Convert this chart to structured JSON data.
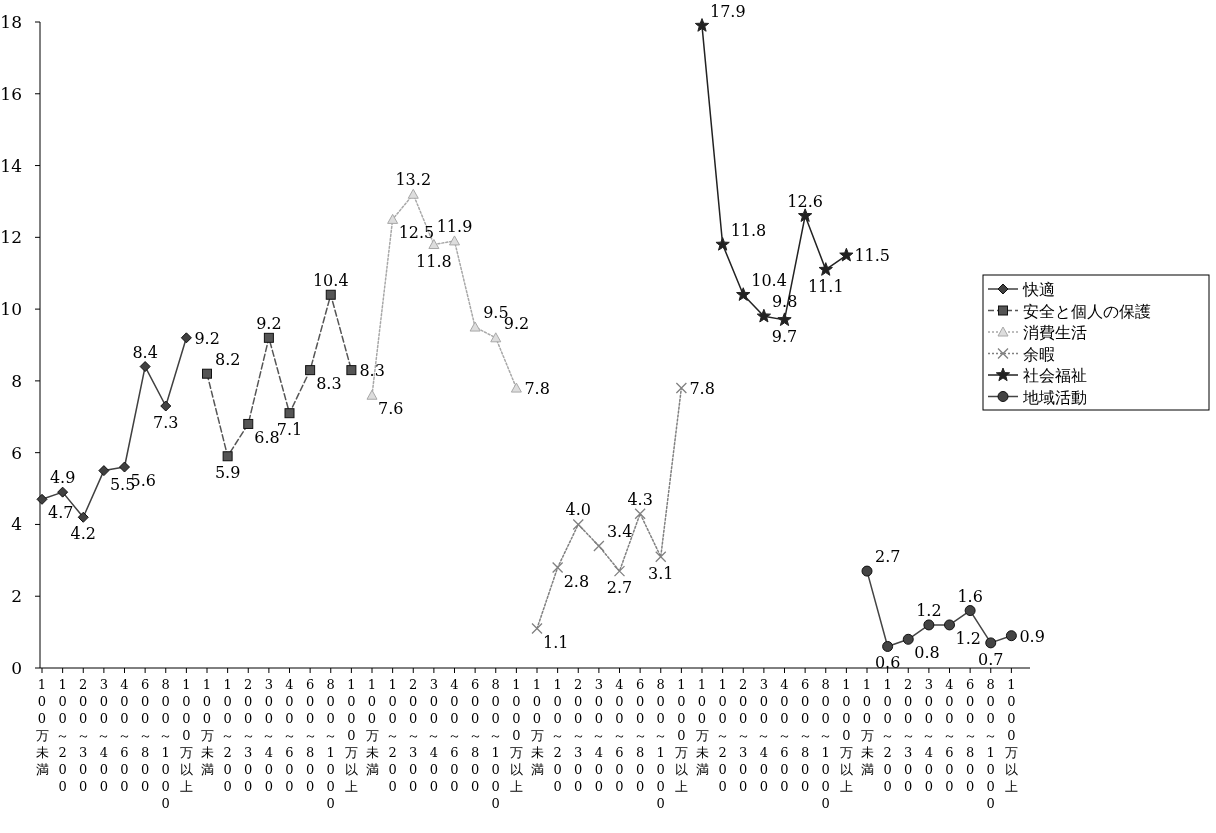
{
  "chart_data": {
    "type": "line",
    "categories": [
      "100万未満",
      "100～200",
      "200～300",
      "300～400",
      "400～600",
      "600～800",
      "800～1000",
      "1000万以上",
      "100万未満",
      "100～200",
      "200～300",
      "300～400",
      "400～600",
      "600～800",
      "800～1000",
      "1000万以上",
      "100万未満",
      "100～200",
      "200～300",
      "300～400",
      "400～600",
      "600～800",
      "800～1000",
      "1000万以上",
      "100万未満",
      "100～200",
      "200～300",
      "300～400",
      "400～600",
      "600～800",
      "800～1000",
      "1000万以上",
      "100万未満",
      "100～200",
      "200～300",
      "300～400",
      "400～600",
      "600～800",
      "800～1000",
      "1000万以上",
      "100万未満",
      "100～200",
      "200～300",
      "300～400",
      "400～600",
      "600～800",
      "800～1000",
      "1000万以上"
    ],
    "series": [
      {
        "name": "快適",
        "color": "#404040",
        "marker": "diamond",
        "line_style": "solid",
        "values": [
          4.7,
          4.9,
          4.2,
          5.5,
          5.6,
          8.4,
          7.3,
          9.2,
          null,
          null,
          null,
          null,
          null,
          null,
          null,
          null,
          null,
          null,
          null,
          null,
          null,
          null,
          null,
          null,
          null,
          null,
          null,
          null,
          null,
          null,
          null,
          null,
          null,
          null,
          null,
          null,
          null,
          null,
          null,
          null,
          null,
          null,
          null,
          null,
          null,
          null,
          null,
          null
        ],
        "value_labels": [
          "4.7",
          "4.9",
          "4.2",
          "5.5",
          "5.6",
          "8.4",
          "7.3",
          "9.2",
          null,
          null,
          null,
          null,
          null,
          null,
          null,
          null,
          null,
          null,
          null,
          null,
          null,
          null,
          null,
          null,
          null,
          null,
          null,
          null,
          null,
          null,
          null,
          null,
          null,
          null,
          null,
          null,
          null,
          null,
          null,
          null,
          null,
          null,
          null,
          null,
          null,
          null,
          null,
          null
        ]
      },
      {
        "name": "安全と個人の保護",
        "color": "#555555",
        "marker": "square",
        "line_style": "dashed",
        "values": [
          null,
          null,
          null,
          null,
          null,
          null,
          null,
          null,
          8.2,
          5.9,
          6.8,
          9.2,
          7.1,
          8.3,
          10.4,
          8.3,
          null,
          null,
          null,
          null,
          null,
          null,
          null,
          null,
          null,
          null,
          null,
          null,
          null,
          null,
          null,
          null,
          null,
          null,
          null,
          null,
          null,
          null,
          null,
          null,
          null,
          null,
          null,
          null,
          null,
          null,
          null,
          null
        ],
        "value_labels": [
          null,
          null,
          null,
          null,
          null,
          null,
          null,
          null,
          "8.2",
          "5.9",
          "6.8",
          "9.2",
          "7.1",
          "8.3",
          "10.4",
          "8.3",
          null,
          null,
          null,
          null,
          null,
          null,
          null,
          null,
          null,
          null,
          null,
          null,
          null,
          null,
          null,
          null,
          null,
          null,
          null,
          null,
          null,
          null,
          null,
          null,
          null,
          null,
          null,
          null,
          null,
          null,
          null,
          null
        ]
      },
      {
        "name": "消費生活",
        "color": "#a8a8a8",
        "marker": "triangle",
        "line_style": "dotted",
        "values": [
          null,
          null,
          null,
          null,
          null,
          null,
          null,
          null,
          null,
          null,
          null,
          null,
          null,
          null,
          null,
          null,
          7.6,
          12.5,
          13.2,
          11.8,
          11.9,
          9.5,
          9.2,
          7.8,
          null,
          null,
          null,
          null,
          null,
          null,
          null,
          null,
          null,
          null,
          null,
          null,
          null,
          null,
          null,
          null,
          null,
          null,
          null,
          null,
          null,
          null,
          null,
          null
        ],
        "value_labels": [
          null,
          null,
          null,
          null,
          null,
          null,
          null,
          null,
          null,
          null,
          null,
          null,
          null,
          null,
          null,
          null,
          "7.6",
          "12.5",
          "13.2",
          "11.8",
          "11.9",
          "9.5",
          "9.2",
          "7.8",
          null,
          null,
          null,
          null,
          null,
          null,
          null,
          null,
          null,
          null,
          null,
          null,
          null,
          null,
          null,
          null,
          null,
          null,
          null,
          null,
          null,
          null,
          null,
          null
        ]
      },
      {
        "name": "余暇",
        "color": "#808080",
        "marker": "cross",
        "line_style": "dotted",
        "values": [
          null,
          null,
          null,
          null,
          null,
          null,
          null,
          null,
          null,
          null,
          null,
          null,
          null,
          null,
          null,
          null,
          null,
          null,
          null,
          null,
          null,
          null,
          null,
          null,
          1.1,
          2.8,
          4.0,
          3.4,
          2.7,
          4.3,
          3.1,
          7.8,
          null,
          null,
          null,
          null,
          null,
          null,
          null,
          null,
          null,
          null,
          null,
          null,
          null,
          null,
          null,
          null
        ],
        "value_labels": [
          null,
          null,
          null,
          null,
          null,
          null,
          null,
          null,
          null,
          null,
          null,
          null,
          null,
          null,
          null,
          null,
          null,
          null,
          null,
          null,
          null,
          null,
          null,
          null,
          "1.1",
          "2.8",
          "4.0",
          "3.4",
          "2.7",
          "4.3",
          "3.1",
          "7.8",
          null,
          null,
          null,
          null,
          null,
          null,
          null,
          null,
          null,
          null,
          null,
          null,
          null,
          null,
          null,
          null
        ]
      },
      {
        "name": "社会福祉",
        "color": "#222222",
        "marker": "star",
        "line_style": "solid",
        "values": [
          null,
          null,
          null,
          null,
          null,
          null,
          null,
          null,
          null,
          null,
          null,
          null,
          null,
          null,
          null,
          null,
          null,
          null,
          null,
          null,
          null,
          null,
          null,
          null,
          null,
          null,
          null,
          null,
          null,
          null,
          null,
          null,
          17.9,
          11.8,
          10.4,
          9.8,
          9.7,
          12.6,
          11.1,
          11.5,
          null,
          null,
          null,
          null,
          null,
          null,
          null,
          null
        ],
        "value_labels": [
          null,
          null,
          null,
          null,
          null,
          null,
          null,
          null,
          null,
          null,
          null,
          null,
          null,
          null,
          null,
          null,
          null,
          null,
          null,
          null,
          null,
          null,
          null,
          null,
          null,
          null,
          null,
          null,
          null,
          null,
          null,
          null,
          "17.9",
          "11.8",
          "10.4",
          "9.8",
          "9.7",
          "12.6",
          "11.1",
          "11.5",
          null,
          null,
          null,
          null,
          null,
          null,
          null,
          null
        ]
      },
      {
        "name": "地域活動",
        "color": "#444444",
        "marker": "circle",
        "line_style": "solid",
        "values": [
          null,
          null,
          null,
          null,
          null,
          null,
          null,
          null,
          null,
          null,
          null,
          null,
          null,
          null,
          null,
          null,
          null,
          null,
          null,
          null,
          null,
          null,
          null,
          null,
          null,
          null,
          null,
          null,
          null,
          null,
          null,
          null,
          null,
          null,
          null,
          null,
          null,
          null,
          null,
          null,
          2.7,
          0.6,
          0.8,
          1.2,
          1.2,
          1.6,
          0.7,
          0.9
        ],
        "value_labels": [
          null,
          null,
          null,
          null,
          null,
          null,
          null,
          null,
          null,
          null,
          null,
          null,
          null,
          null,
          null,
          null,
          null,
          null,
          null,
          null,
          null,
          null,
          null,
          null,
          null,
          null,
          null,
          null,
          null,
          null,
          null,
          null,
          null,
          null,
          null,
          null,
          null,
          null,
          null,
          null,
          "2.7",
          "0.6",
          "0.8",
          "1.2",
          "1.2",
          "1.6",
          "0.7",
          "0.9"
        ]
      }
    ],
    "ylim": [
      0,
      18
    ],
    "yticks": [
      0,
      2,
      4,
      6,
      8,
      10,
      12,
      14,
      16,
      18
    ],
    "data_labels": true,
    "legend": "right",
    "grid": false
  }
}
